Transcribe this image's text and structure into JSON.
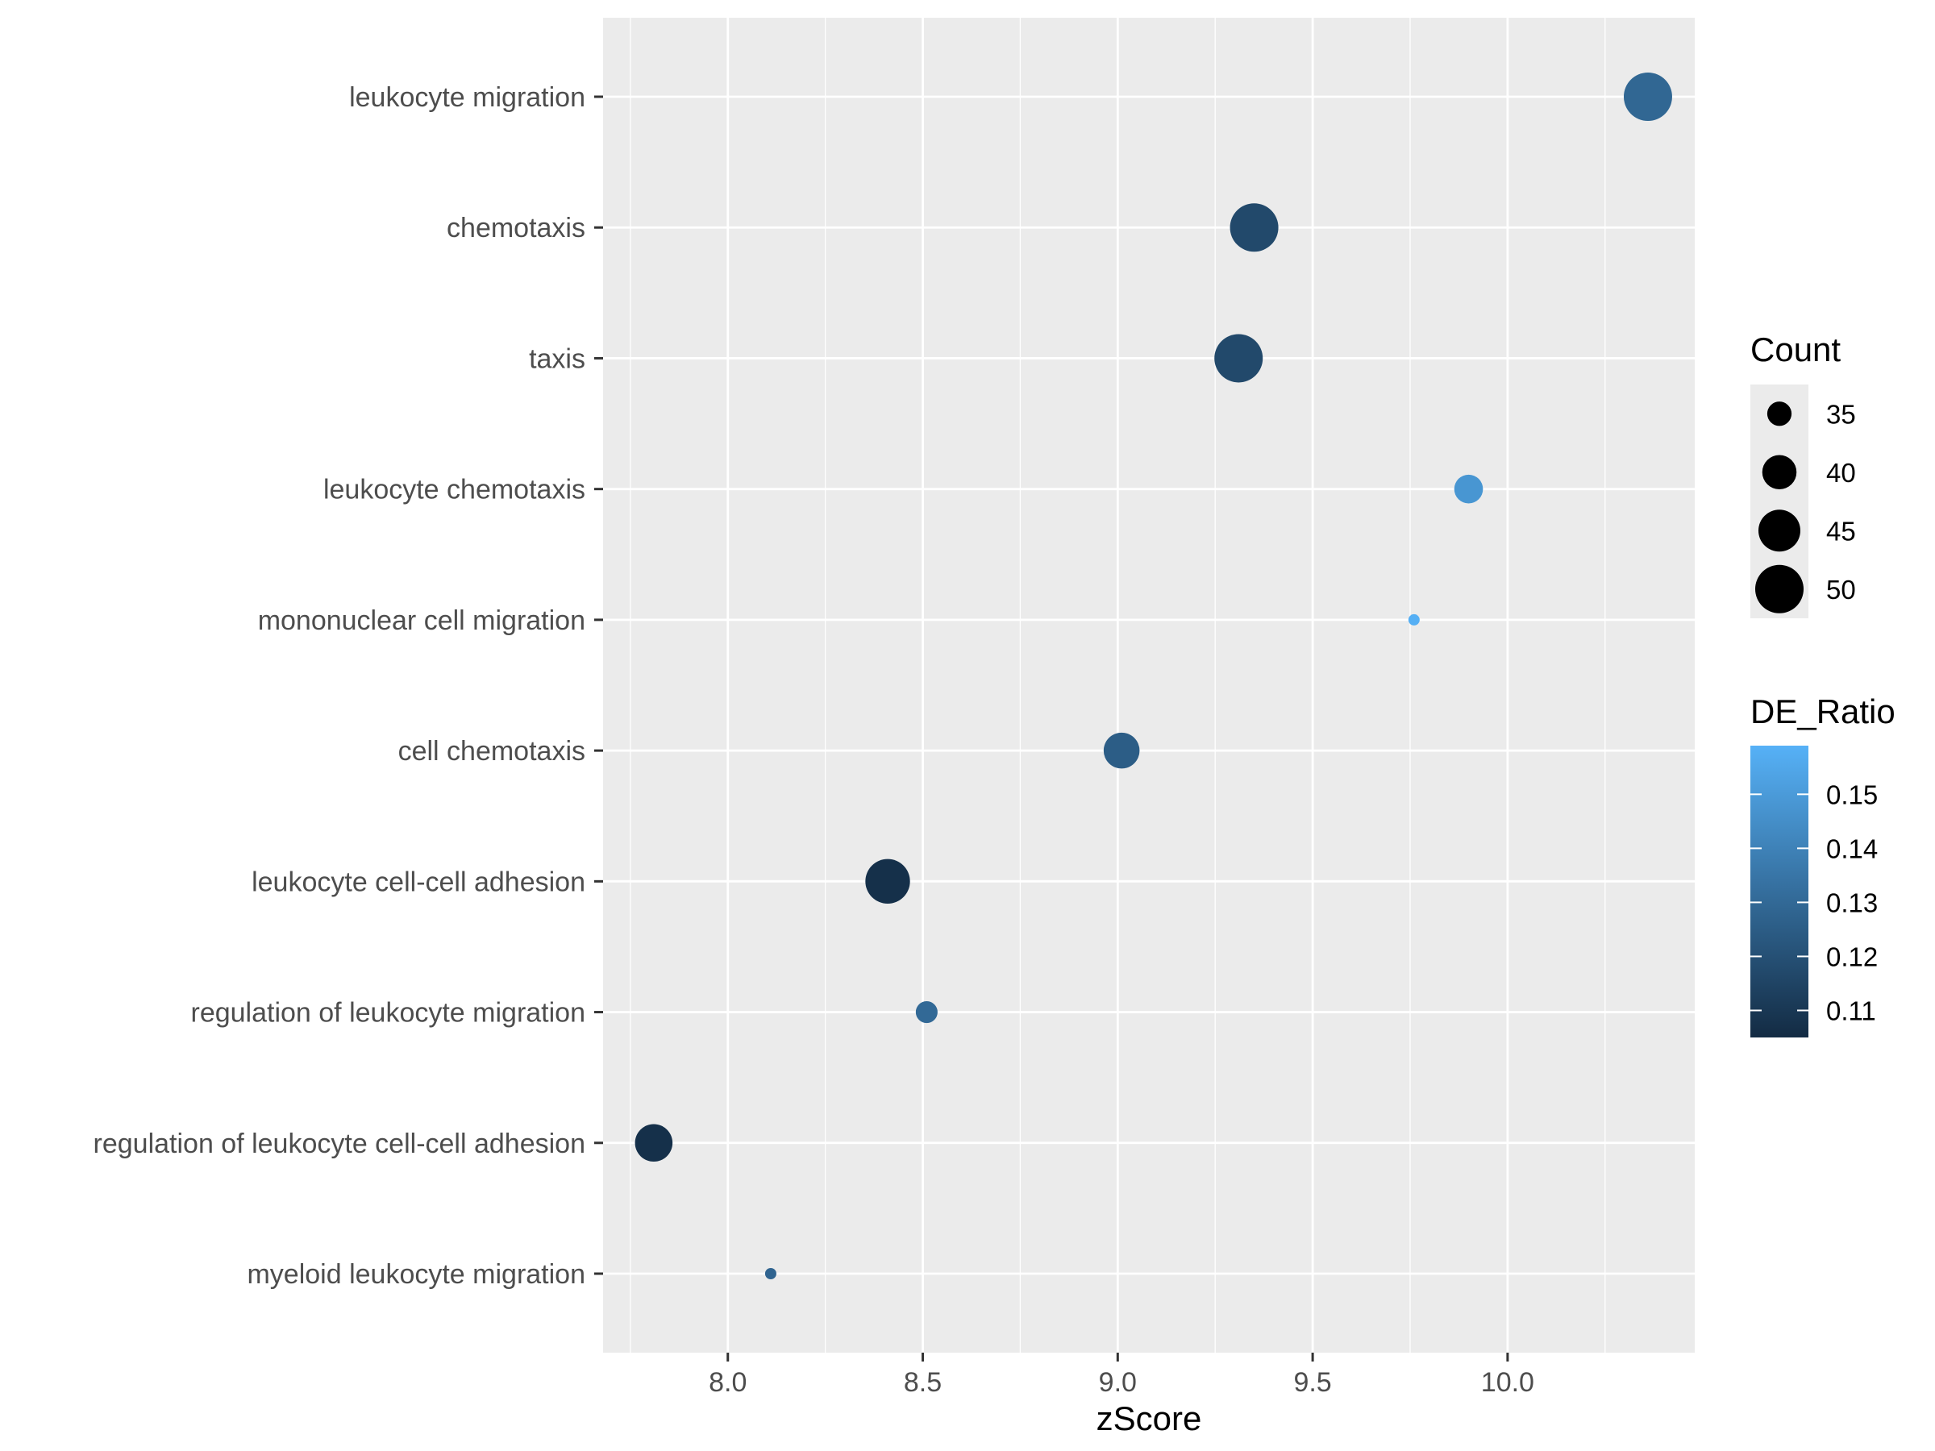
{
  "chart_data": {
    "type": "scatter",
    "title": "",
    "xlabel": "zScore",
    "ylabel": "",
    "xlim": [
      7.68,
      10.48
    ],
    "xticks": [
      "8.0",
      "8.5",
      "9.0",
      "9.5",
      "10.0"
    ],
    "xtick_values": [
      8.0,
      8.5,
      9.0,
      9.5,
      10.0
    ],
    "categories": [
      "leukocyte migration",
      "chemotaxis",
      "taxis",
      "leukocyte chemotaxis",
      "mononuclear cell migration",
      "cell chemotaxis",
      "leukocyte cell-cell adhesion",
      "regulation of leukocyte migration",
      "regulation of leukocyte cell-cell adhesion",
      "myeloid leukocyte migration"
    ],
    "points": [
      {
        "term": "leukocyte migration",
        "zScore": 10.36,
        "Count": 50,
        "DE_Ratio": 0.129
      },
      {
        "term": "chemotaxis",
        "zScore": 9.35,
        "Count": 50,
        "DE_Ratio": 0.117
      },
      {
        "term": "taxis",
        "zScore": 9.31,
        "Count": 50,
        "DE_Ratio": 0.117
      },
      {
        "term": "leukocyte chemotaxis",
        "zScore": 9.9,
        "Count": 37,
        "DE_Ratio": 0.148
      },
      {
        "term": "mononuclear cell migration",
        "zScore": 9.76,
        "Count": 31,
        "DE_Ratio": 0.158
      },
      {
        "term": "cell chemotaxis",
        "zScore": 9.01,
        "Count": 41,
        "DE_Ratio": 0.125
      },
      {
        "term": "leukocyte cell-cell adhesion",
        "zScore": 8.41,
        "Count": 47,
        "DE_Ratio": 0.107
      },
      {
        "term": "regulation of leukocyte migration",
        "zScore": 8.51,
        "Count": 34,
        "DE_Ratio": 0.13
      },
      {
        "term": "regulation of leukocyte cell-cell adhesion",
        "zScore": 7.81,
        "Count": 42,
        "DE_Ratio": 0.107
      },
      {
        "term": "myeloid leukocyte migration",
        "zScore": 8.11,
        "Count": 31,
        "DE_Ratio": 0.128
      }
    ],
    "size_legend": {
      "title": "Count",
      "values": [
        35,
        40,
        45,
        50
      ],
      "labels": [
        "35",
        "40",
        "45",
        "50"
      ],
      "range": [
        31,
        50
      ]
    },
    "color_legend": {
      "title": "DE_Ratio",
      "range": [
        0.105,
        0.159
      ],
      "ticks": [
        0.11,
        0.12,
        0.13,
        0.14,
        0.15
      ],
      "labels": [
        "0.11",
        "0.12",
        "0.13",
        "0.14",
        "0.15"
      ],
      "low_color": "#132B43",
      "high_color": "#56B1F7"
    },
    "grid": true,
    "legend_position": "right",
    "panel_background": "#EBEBEB",
    "gridline_color": "#FFFFFF"
  }
}
